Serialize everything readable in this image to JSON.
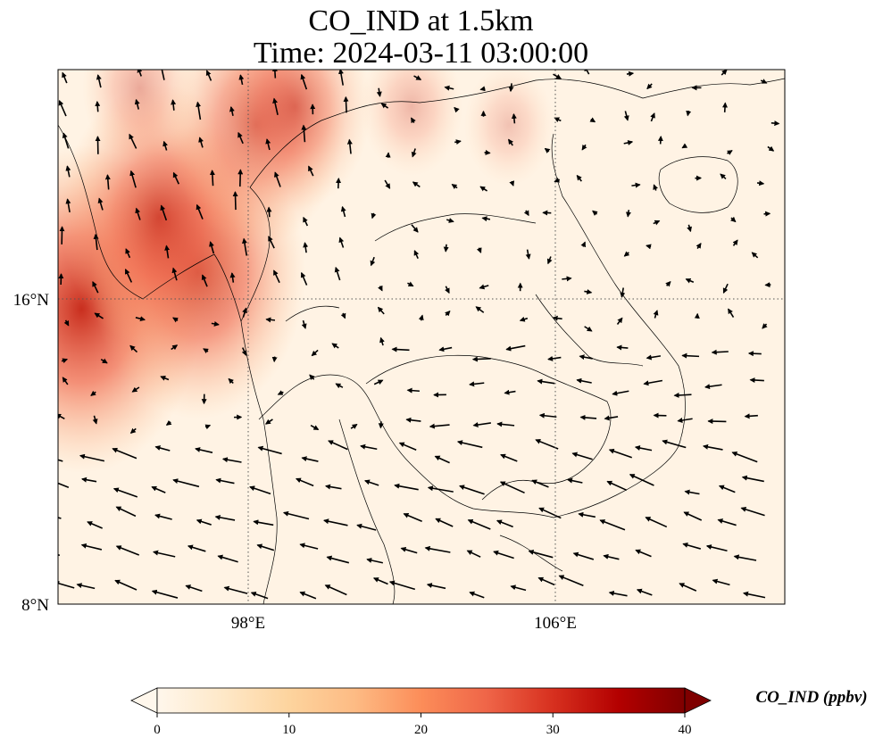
{
  "chart_data": {
    "type": "heatmap",
    "title": "CO_IND at 1.5km",
    "subtitle": "Time: 2024-03-11 03:00:00",
    "xlabel": "",
    "ylabel": "",
    "x_ticks": [
      "98°E",
      "106°E"
    ],
    "y_ticks": [
      "16°N",
      "8°N"
    ],
    "grid": true,
    "colorbar": {
      "label": "CO_IND (ppbv)",
      "min": 0,
      "max": 40,
      "ticks": [
        "0",
        "10",
        "20",
        "30",
        "40"
      ],
      "colormap": "OrRd",
      "colors": [
        "#fff7ec",
        "#fee8c8",
        "#fdd49e",
        "#fdbb84",
        "#fc8d59",
        "#ef6548",
        "#d7301f",
        "#b30000",
        "#7f0000"
      ],
      "extend": "both"
    },
    "plumes": [
      {
        "lon": 93.5,
        "lat": 16.0,
        "value": 32
      },
      {
        "lon": 96.5,
        "lat": 17.0,
        "value": 28
      },
      {
        "lon": 95.5,
        "lat": 18.5,
        "value": 25
      },
      {
        "lon": 98.0,
        "lat": 21.0,
        "value": 22
      },
      {
        "lon": 99.0,
        "lat": 21.5,
        "value": 18
      },
      {
        "lon": 95.0,
        "lat": 22.0,
        "value": 12
      },
      {
        "lon": 102.0,
        "lat": 21.5,
        "value": 10
      },
      {
        "lon": 104.5,
        "lat": 21.0,
        "value": 8
      }
    ],
    "wind_vectors": "arrows mostly westward in south, northward in northwest"
  }
}
